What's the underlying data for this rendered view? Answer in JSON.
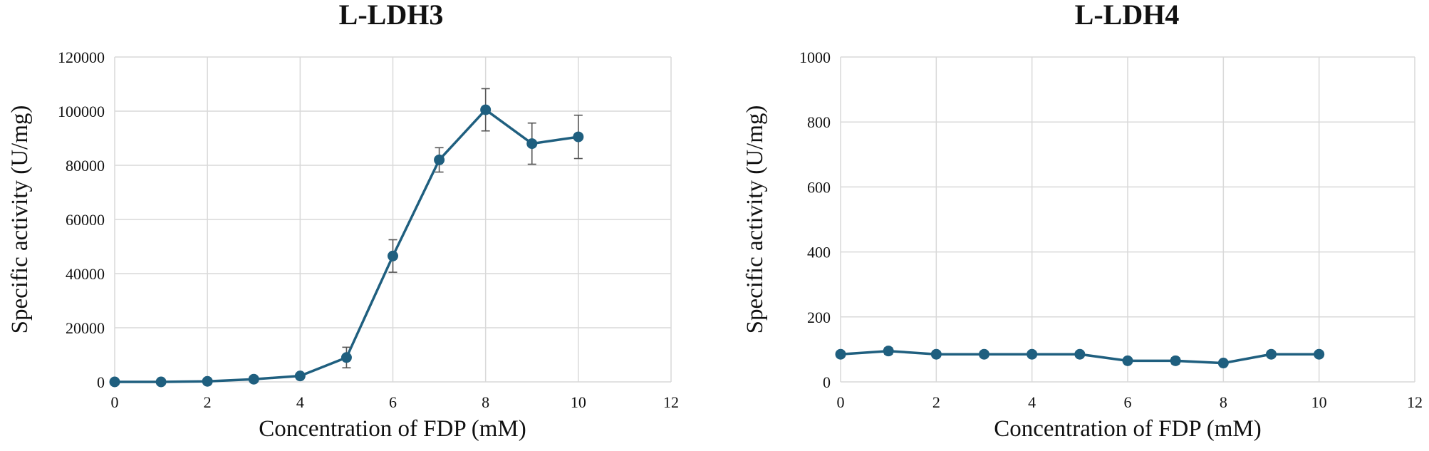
{
  "colors": {
    "series": "#1f5f7f"
  },
  "chart_data": [
    {
      "type": "line",
      "title": "L-LDH3",
      "xlabel": "Concentration of FDP (mM)",
      "ylabel": "Specific activity (U/mg)",
      "xlim": [
        0,
        12
      ],
      "ylim": [
        0,
        120000
      ],
      "x_ticks": [
        0,
        2,
        4,
        6,
        8,
        10,
        12
      ],
      "y_ticks": [
        0,
        20000,
        40000,
        60000,
        80000,
        100000,
        120000
      ],
      "x_tick_labels": [
        "0",
        "2",
        "4",
        "6",
        "8",
        "10",
        "12"
      ],
      "y_tick_labels": [
        "0",
        "20000",
        "40000",
        "60000",
        "80000",
        "100000",
        "120000"
      ],
      "grid": true,
      "series": [
        {
          "name": "L-LDH3",
          "x": [
            0,
            1,
            2,
            3,
            4,
            5,
            6,
            7,
            8,
            9,
            10
          ],
          "y": [
            0,
            0,
            200,
            1000,
            2200,
            9000,
            46500,
            82000,
            100500,
            88000,
            90500
          ],
          "err": [
            0,
            0,
            0,
            0,
            0,
            3800,
            6000,
            4500,
            7800,
            7600,
            8000
          ]
        }
      ]
    },
    {
      "type": "line",
      "title": "L-LDH4",
      "xlabel": "Concentration of FDP (mM)",
      "ylabel": "Specific activity (U/mg)",
      "xlim": [
        0,
        12
      ],
      "ylim": [
        0,
        1000
      ],
      "x_ticks": [
        0,
        2,
        4,
        6,
        8,
        10,
        12
      ],
      "y_ticks": [
        0,
        200,
        400,
        600,
        800,
        1000
      ],
      "x_tick_labels": [
        "0",
        "2",
        "4",
        "6",
        "8",
        "10",
        "12"
      ],
      "y_tick_labels": [
        "0",
        "200",
        "400",
        "600",
        "800",
        "1000"
      ],
      "grid": true,
      "series": [
        {
          "name": "L-LDH4",
          "x": [
            0,
            1,
            2,
            3,
            4,
            5,
            6,
            7,
            8,
            9,
            10
          ],
          "y": [
            85,
            95,
            85,
            85,
            85,
            85,
            65,
            65,
            58,
            85,
            85
          ],
          "err": [
            0,
            10,
            0,
            0,
            0,
            0,
            0,
            10,
            0,
            0,
            0
          ]
        }
      ]
    }
  ]
}
